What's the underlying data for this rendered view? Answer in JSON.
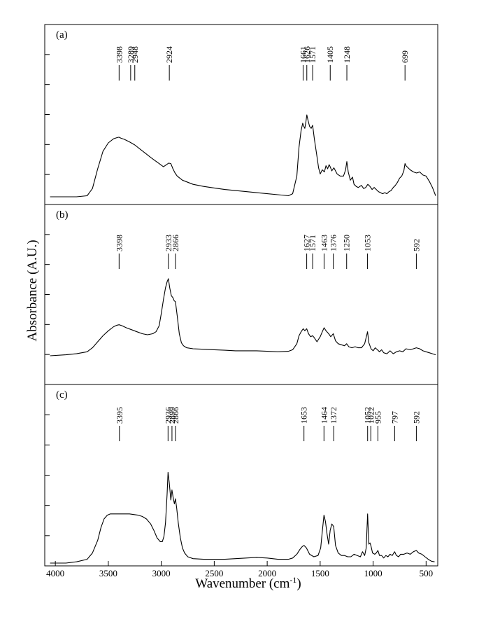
{
  "chart_data": {
    "type": "line",
    "xlabel": "Wavenumber (cm",
    "xlabel_sup": "-1",
    "xlabel_tail": ")",
    "ylabel": "Absorbance  (A.U.)",
    "xlim": [
      4100,
      390
    ],
    "x_reversed": true,
    "x_ticks": [
      4000,
      3500,
      3000,
      2500,
      2000,
      1500,
      1000,
      500
    ],
    "x_tick_labels": [
      "4000",
      "3500",
      "3000",
      "2500",
      "2000",
      "1500",
      "1000",
      "500"
    ],
    "y_ticks_per_panel": 5,
    "panels": [
      {
        "label": "(a)",
        "ylim": [
          0,
          1
        ],
        "series": {
          "x": [
            4050,
            3800,
            3700,
            3650,
            3600,
            3550,
            3500,
            3450,
            3420,
            3400,
            3380,
            3350,
            3300,
            3250,
            3200,
            3150,
            3100,
            3060,
            3020,
            2980,
            2950,
            2930,
            2910,
            2890,
            2870,
            2850,
            2800,
            2700,
            2600,
            2500,
            2400,
            2200,
            2000,
            1900,
            1800,
            1760,
            1720,
            1700,
            1680,
            1665,
            1655,
            1645,
            1635,
            1626,
            1615,
            1600,
            1585,
            1571,
            1555,
            1535,
            1515,
            1500,
            1480,
            1460,
            1445,
            1430,
            1415,
            1405,
            1390,
            1370,
            1340,
            1310,
            1280,
            1260,
            1248,
            1235,
            1215,
            1195,
            1180,
            1160,
            1140,
            1110,
            1090,
            1070,
            1050,
            1030,
            1010,
            990,
            970,
            950,
            930,
            910,
            890,
            870,
            850,
            830,
            810,
            790,
            770,
            750,
            730,
            710,
            699,
            690,
            670,
            650,
            620,
            590,
            560,
            530,
            500,
            470,
            440,
            410
          ],
          "y": [
            0.0,
            0.0,
            0.01,
            0.08,
            0.27,
            0.44,
            0.52,
            0.56,
            0.57,
            0.575,
            0.565,
            0.555,
            0.53,
            0.5,
            0.46,
            0.42,
            0.38,
            0.35,
            0.32,
            0.29,
            0.31,
            0.325,
            0.32,
            0.27,
            0.23,
            0.2,
            0.16,
            0.12,
            0.1,
            0.085,
            0.07,
            0.05,
            0.03,
            0.02,
            0.01,
            0.03,
            0.2,
            0.48,
            0.64,
            0.71,
            0.68,
            0.66,
            0.72,
            0.79,
            0.74,
            0.68,
            0.66,
            0.69,
            0.56,
            0.42,
            0.28,
            0.22,
            0.26,
            0.24,
            0.3,
            0.27,
            0.31,
            0.29,
            0.25,
            0.28,
            0.22,
            0.2,
            0.2,
            0.26,
            0.34,
            0.24,
            0.16,
            0.19,
            0.12,
            0.1,
            0.09,
            0.11,
            0.08,
            0.09,
            0.12,
            0.1,
            0.07,
            0.09,
            0.07,
            0.05,
            0.04,
            0.03,
            0.04,
            0.03,
            0.05,
            0.06,
            0.09,
            0.11,
            0.14,
            0.18,
            0.2,
            0.25,
            0.32,
            0.3,
            0.28,
            0.26,
            0.24,
            0.23,
            0.24,
            0.21,
            0.2,
            0.15,
            0.09,
            0.01
          ]
        },
        "annotations": [
          {
            "text": "3398",
            "x": 3398
          },
          {
            "text": "3289",
            "x": 3289
          },
          {
            "text": "2948",
            "x": 3250
          },
          {
            "text": "2924",
            "x": 2924
          },
          {
            "text": "1661",
            "x": 1661
          },
          {
            "text": "1626",
            "x": 1626
          },
          {
            "text": "1571",
            "x": 1571
          },
          {
            "text": "1405",
            "x": 1405
          },
          {
            "text": "1248",
            "x": 1248
          },
          {
            "text": "699",
            "x": 699
          }
        ]
      },
      {
        "label": "(b)",
        "ylim": [
          0,
          1
        ],
        "series": {
          "x": [
            4050,
            3900,
            3800,
            3700,
            3650,
            3600,
            3550,
            3500,
            3450,
            3420,
            3398,
            3370,
            3330,
            3280,
            3230,
            3180,
            3130,
            3080,
            3050,
            3020,
            3000,
            2980,
            2960,
            2945,
            2933,
            2920,
            2905,
            2890,
            2878,
            2866,
            2850,
            2830,
            2810,
            2790,
            2760,
            2700,
            2600,
            2500,
            2400,
            2300,
            2200,
            2100,
            2000,
            1900,
            1800,
            1760,
            1720,
            1700,
            1680,
            1660,
            1645,
            1627,
            1610,
            1590,
            1571,
            1555,
            1530,
            1500,
            1480,
            1463,
            1445,
            1420,
            1400,
            1376,
            1355,
            1330,
            1300,
            1270,
            1250,
            1230,
            1200,
            1170,
            1140,
            1110,
            1080,
            1053,
            1040,
            1020,
            1000,
            980,
            960,
            940,
            920,
            900,
            870,
            840,
            810,
            780,
            750,
            720,
            690,
            650,
            620,
            592,
            560,
            530,
            500,
            470,
            440,
            410
          ],
          "y": [
            0.0,
            0.01,
            0.02,
            0.04,
            0.08,
            0.14,
            0.2,
            0.25,
            0.29,
            0.305,
            0.31,
            0.3,
            0.28,
            0.26,
            0.24,
            0.22,
            0.21,
            0.22,
            0.24,
            0.3,
            0.42,
            0.56,
            0.68,
            0.74,
            0.77,
            0.68,
            0.6,
            0.58,
            0.55,
            0.54,
            0.4,
            0.22,
            0.13,
            0.1,
            0.08,
            0.07,
            0.065,
            0.06,
            0.055,
            0.05,
            0.05,
            0.05,
            0.045,
            0.04,
            0.045,
            0.06,
            0.12,
            0.2,
            0.24,
            0.27,
            0.25,
            0.27,
            0.22,
            0.19,
            0.2,
            0.18,
            0.14,
            0.19,
            0.24,
            0.28,
            0.25,
            0.22,
            0.19,
            0.22,
            0.15,
            0.12,
            0.11,
            0.1,
            0.12,
            0.09,
            0.08,
            0.09,
            0.08,
            0.08,
            0.12,
            0.24,
            0.13,
            0.07,
            0.05,
            0.08,
            0.06,
            0.04,
            0.06,
            0.03,
            0.02,
            0.05,
            0.02,
            0.04,
            0.05,
            0.04,
            0.07,
            0.06,
            0.07,
            0.08,
            0.07,
            0.05,
            0.04,
            0.03,
            0.02,
            0.01
          ]
        },
        "annotations": [
          {
            "text": "3398",
            "x": 3398
          },
          {
            "text": "2933",
            "x": 2933
          },
          {
            "text": "2866",
            "x": 2866
          },
          {
            "text": "1627",
            "x": 1627
          },
          {
            "text": "1571",
            "x": 1571
          },
          {
            "text": "1463",
            "x": 1463
          },
          {
            "text": "1376",
            "x": 1376
          },
          {
            "text": "1250",
            "x": 1250
          },
          {
            "text": "1053",
            "x": 1053
          },
          {
            "text": "592",
            "x": 592
          }
        ]
      },
      {
        "label": "(c)",
        "ylim": [
          0,
          1
        ],
        "series": {
          "x": [
            4050,
            3900,
            3800,
            3700,
            3650,
            3600,
            3570,
            3540,
            3510,
            3480,
            3450,
            3420,
            3395,
            3370,
            3340,
            3300,
            3260,
            3220,
            3180,
            3140,
            3100,
            3070,
            3040,
            3010,
            2990,
            2975,
            2960,
            2945,
            2936,
            2925,
            2910,
            2899,
            2888,
            2876,
            2866,
            2855,
            2840,
            2820,
            2800,
            2780,
            2750,
            2700,
            2600,
            2500,
            2400,
            2300,
            2200,
            2100,
            2000,
            1900,
            1800,
            1760,
            1720,
            1690,
            1670,
            1653,
            1630,
            1600,
            1560,
            1520,
            1495,
            1480,
            1464,
            1450,
            1435,
            1420,
            1405,
            1390,
            1372,
            1355,
            1330,
            1300,
            1270,
            1240,
            1210,
            1180,
            1150,
            1120,
            1100,
            1080,
            1065,
            1052,
            1040,
            1030,
            1022,
            1005,
            985,
            970,
            955,
            940,
            920,
            900,
            880,
            860,
            840,
            820,
            797,
            780,
            760,
            740,
            710,
            680,
            650,
            620,
            592,
            570,
            540,
            510,
            480,
            450,
            420
          ],
          "y": [
            0.0,
            0.0,
            0.01,
            0.03,
            0.08,
            0.18,
            0.28,
            0.35,
            0.38,
            0.39,
            0.39,
            0.39,
            0.39,
            0.39,
            0.39,
            0.39,
            0.385,
            0.38,
            0.37,
            0.35,
            0.31,
            0.26,
            0.2,
            0.17,
            0.17,
            0.21,
            0.32,
            0.55,
            0.72,
            0.64,
            0.5,
            0.58,
            0.52,
            0.47,
            0.51,
            0.44,
            0.32,
            0.2,
            0.12,
            0.08,
            0.05,
            0.035,
            0.03,
            0.03,
            0.03,
            0.035,
            0.04,
            0.045,
            0.04,
            0.03,
            0.03,
            0.04,
            0.07,
            0.11,
            0.13,
            0.14,
            0.12,
            0.07,
            0.05,
            0.06,
            0.12,
            0.25,
            0.38,
            0.33,
            0.23,
            0.15,
            0.26,
            0.31,
            0.29,
            0.14,
            0.08,
            0.06,
            0.06,
            0.05,
            0.05,
            0.07,
            0.06,
            0.05,
            0.09,
            0.06,
            0.12,
            0.39,
            0.15,
            0.16,
            0.14,
            0.08,
            0.07,
            0.08,
            0.1,
            0.06,
            0.06,
            0.04,
            0.06,
            0.05,
            0.07,
            0.06,
            0.09,
            0.06,
            0.05,
            0.07,
            0.07,
            0.08,
            0.07,
            0.09,
            0.1,
            0.08,
            0.07,
            0.05,
            0.03,
            0.015,
            0.01
          ]
        },
        "annotations": [
          {
            "text": "3395",
            "x": 3395
          },
          {
            "text": "2936",
            "x": 2936
          },
          {
            "text": "2899",
            "x": 2899
          },
          {
            "text": "2866",
            "x": 2866
          },
          {
            "text": "1653",
            "x": 1653
          },
          {
            "text": "1464",
            "x": 1464
          },
          {
            "text": "1372",
            "x": 1372
          },
          {
            "text": "1052",
            "x": 1052
          },
          {
            "text": "1022",
            "x": 1022
          },
          {
            "text": "955",
            "x": 955
          },
          {
            "text": "797",
            "x": 797
          },
          {
            "text": "592",
            "x": 592
          }
        ]
      }
    ]
  }
}
